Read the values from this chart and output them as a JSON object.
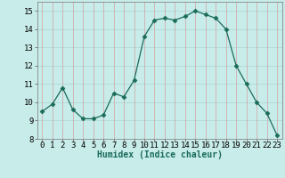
{
  "x": [
    0,
    1,
    2,
    3,
    4,
    5,
    6,
    7,
    8,
    9,
    10,
    11,
    12,
    13,
    14,
    15,
    16,
    17,
    18,
    19,
    20,
    21,
    22,
    23
  ],
  "y": [
    9.5,
    9.9,
    10.8,
    9.6,
    9.1,
    9.1,
    9.3,
    10.5,
    10.3,
    11.2,
    13.6,
    14.5,
    14.6,
    14.5,
    14.7,
    15.0,
    14.8,
    14.6,
    14.0,
    12.0,
    11.0,
    10.0,
    9.4,
    8.2
  ],
  "line_color": "#1a6b5a",
  "marker": "D",
  "markersize": 2.5,
  "bg_color": "#c8ecea",
  "xlabel": "Humidex (Indice chaleur)",
  "ylim": [
    8,
    15.5
  ],
  "xlim": [
    -0.5,
    23.5
  ],
  "yticks": [
    8,
    9,
    10,
    11,
    12,
    13,
    14,
    15
  ],
  "xticks": [
    0,
    1,
    2,
    3,
    4,
    5,
    6,
    7,
    8,
    9,
    10,
    11,
    12,
    13,
    14,
    15,
    16,
    17,
    18,
    19,
    20,
    21,
    22,
    23
  ],
  "label_fontsize": 7,
  "tick_fontsize": 6.5,
  "hgrid_color": "#b0d8d4",
  "vgrid_color": "#d4a0a0"
}
